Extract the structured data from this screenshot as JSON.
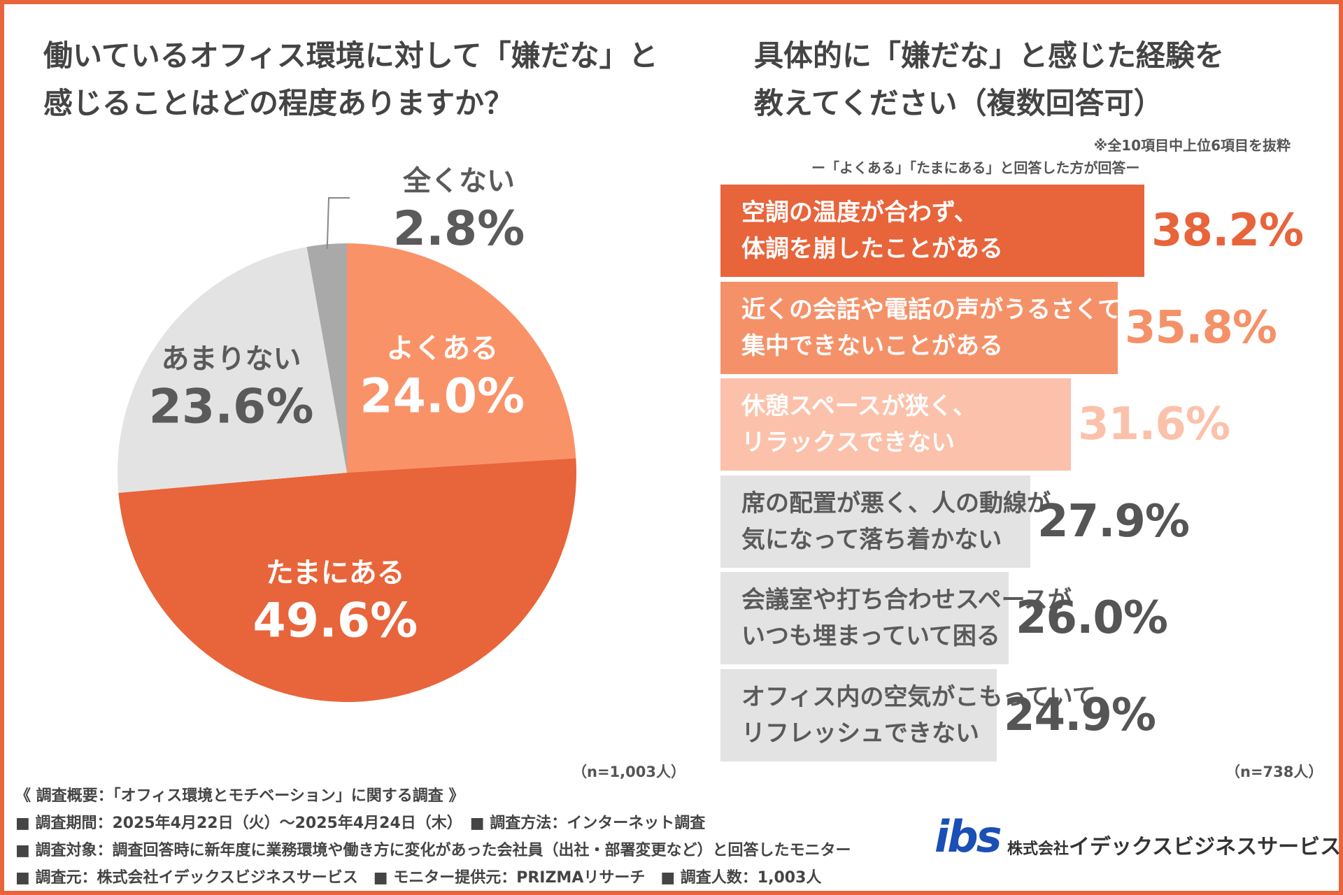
{
  "left_title": [
    "働いているオフィス環境に対して「嫌だな」と",
    "感じることはどの程度ありますか？"
  ],
  "right_title": [
    "具体的に「嫌だな」と感じた経験を",
    "教えてください（複数回答可）"
  ],
  "note_top10": "※全10項目中上位6項目を抜粋",
  "note_respondents": "ー「よくある」「たまにある」と回答した方が回答ー",
  "n_left": "（n=1,003人）",
  "n_right": "（n=738人）",
  "chart_data": [
    {
      "type": "pie",
      "title": "働いているオフィス環境に対して「嫌だな」と感じることはどの程度ありますか？",
      "start": "12 o'clock, clockwise",
      "slices": [
        {
          "label": "よくある",
          "value": 24.0,
          "display": "24.0%",
          "color": "#fa9268",
          "text_color": "#ffffff"
        },
        {
          "label": "たまにある",
          "value": 49.6,
          "display": "49.6%",
          "color": "#e8643a",
          "text_color": "#ffffff"
        },
        {
          "label": "あまりない",
          "value": 23.6,
          "display": "23.6%",
          "color": "#e3e3e3",
          "text_color": "#5a5a5a"
        },
        {
          "label": "全くない",
          "value": 2.8,
          "display": "2.8%",
          "color": "#a9a9a9",
          "text_color": "#5a5a5a"
        }
      ],
      "n": "n=1,003人"
    },
    {
      "type": "bar",
      "orientation": "horizontal",
      "title": "具体的に「嫌だな」と感じた経験を教えてください（複数回答可）",
      "unit": "%",
      "items": [
        {
          "label_lines": [
            "空調の温度が合わず、",
            "体調を崩したことがある"
          ],
          "value": 38.2,
          "display": "38.2%",
          "bar_color": "#e8643a",
          "label_color": "#ffffff",
          "value_color": "#e8643a"
        },
        {
          "label_lines": [
            "近くの会話や電話の声がうるさくて",
            "集中できないことがある"
          ],
          "value": 35.8,
          "display": "35.8%",
          "bar_color": "#f59168",
          "label_color": "#ffffff",
          "value_color": "#f59168"
        },
        {
          "label_lines": [
            "休憩スペースが狭く、",
            "リラックスできない"
          ],
          "value": 31.6,
          "display": "31.6%",
          "bar_color": "#fcc1aa",
          "label_color": "#ffffff",
          "value_color": "#fcc1aa"
        },
        {
          "label_lines": [
            "席の配置が悪く、人の動線が",
            "気になって落ち着かない"
          ],
          "value": 27.9,
          "display": "27.9%",
          "bar_color": "#e3e3e3",
          "label_color": "#5a5a5a",
          "value_color": "#555555"
        },
        {
          "label_lines": [
            "会議室や打ち合わせスペースが",
            "いつも埋まっていて困る"
          ],
          "value": 26.0,
          "display": "26.0%",
          "bar_color": "#e3e3e3",
          "label_color": "#5a5a5a",
          "value_color": "#555555"
        },
        {
          "label_lines": [
            "オフィス内の空気がこもっていて",
            "リフレッシュできない"
          ],
          "value": 24.9,
          "display": "24.9%",
          "bar_color": "#e3e3e3",
          "label_color": "#5a5a5a",
          "value_color": "#555555"
        }
      ],
      "n": "n=738人"
    }
  ],
  "footer": [
    "《 調査概要：「オフィス環境とモチベーション」に関する調査 》",
    "■ 調査期間：2025年4月22日（火）～2025年4月24日（木）　■ 調査方法：インターネット調査",
    "■ 調査対象：調査回答時に新年度に業務環境や働き方に変化があった会社員（出社・部署変更など）と回答したモニター",
    "■ 調査元：株式会社イデックスビジネスサービス　■ モニター提供元：PRIZMAリサーチ　■ 調査人数：1,003人"
  ],
  "logo": {
    "mark": "ibs",
    "company_prefix": "株式会社",
    "company_name": "イデックスビジネスサービス"
  },
  "colors": {
    "accent": "#e8643a",
    "text": "#555555",
    "logo_blue": "#1a4fb5"
  }
}
